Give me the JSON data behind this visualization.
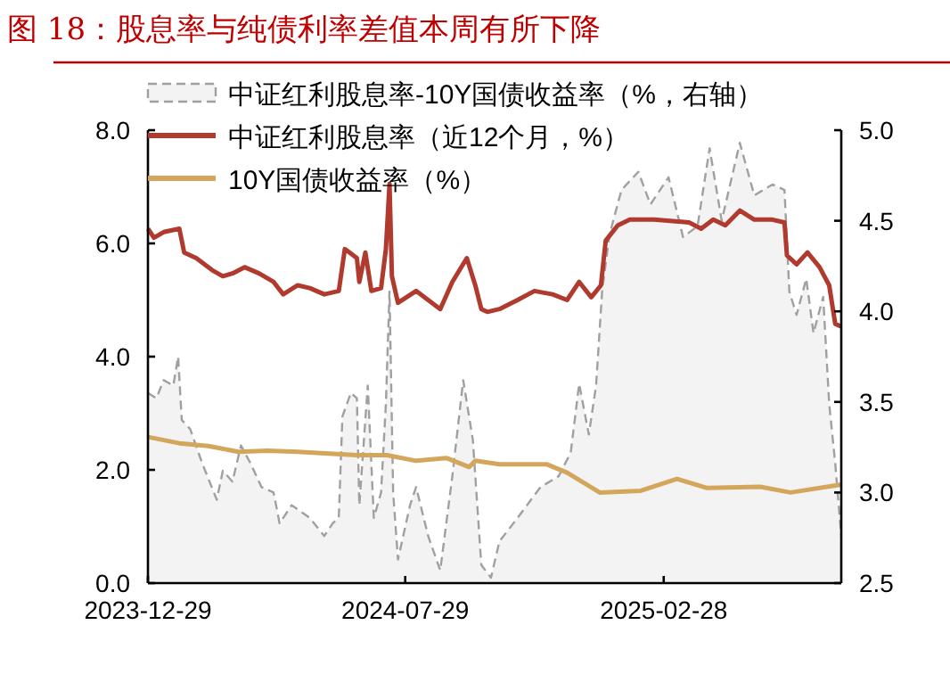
{
  "chart_data": {
    "type": "line",
    "title": "图 18：股息率与纯债利率差值本周有所下降",
    "legend": "top left",
    "xlim": [
      "2023-12-29",
      "2025-07-25"
    ],
    "xticks": [
      {
        "value": "2023-12-29",
        "label": "2023-12-29"
      },
      {
        "value": "2024-07-29",
        "label": "2024-07-29"
      },
      {
        "value": "2025-02-28",
        "label": "2025-02-28"
      }
    ],
    "ylim": [
      0,
      8
    ],
    "yticks": [
      {
        "value": 0,
        "label": "0.0"
      },
      {
        "value": 2,
        "label": "2.0"
      },
      {
        "value": 4,
        "label": "4.0"
      },
      {
        "value": 6,
        "label": "6.0"
      },
      {
        "value": 8,
        "label": "8.0"
      }
    ],
    "y2lim": [
      2.5,
      5
    ],
    "y2ticks": [
      {
        "value": 2.5,
        "label": "2.5"
      },
      {
        "value": 3,
        "label": "3.0"
      },
      {
        "value": 3.5,
        "label": "3.5"
      },
      {
        "value": 4,
        "label": "4.0"
      },
      {
        "value": 4.5,
        "label": "4.5"
      },
      {
        "value": 5,
        "label": "5.0"
      }
    ],
    "series": [
      {
        "name": "中证红利股息率-10Y国债收益率（%，右轴）",
        "type": "area",
        "axis": "y2",
        "line_style": "dashed",
        "color": "#a0a0a0",
        "x": [
          "2023-12-29",
          "2024-01-05",
          "2024-01-11",
          "2024-01-19",
          "2024-01-23",
          "2024-01-26",
          "2024-02-02",
          "2024-02-12",
          "2024-02-24",
          "2024-02-29",
          "2024-03-08",
          "2024-03-15",
          "2024-03-23",
          "2024-04-01",
          "2024-04-11",
          "2024-04-16",
          "2024-04-26",
          "2024-05-11",
          "2024-05-23",
          "2024-05-30",
          "2024-06-04",
          "2024-06-07",
          "2024-06-14",
          "2024-06-19",
          "2024-06-21",
          "2024-06-28",
          "2024-07-03",
          "2024-07-09",
          "2024-07-13",
          "2024-07-16",
          "2024-07-19",
          "2024-07-23",
          "2024-08-02",
          "2024-08-07",
          "2024-08-17",
          "2024-08-27",
          "2024-09-06",
          "2024-09-15",
          "2024-09-23",
          "2024-09-30",
          "2024-10-08",
          "2024-10-15",
          "2024-10-30",
          "2024-11-18",
          "2024-12-03",
          "2024-12-13",
          "2024-12-20",
          "2024-12-28",
          "2025-01-03",
          "2025-01-08",
          "2025-01-14",
          "2025-01-24",
          "2025-02-07",
          "2025-02-17",
          "2025-03-04",
          "2025-03-16",
          "2025-03-28",
          "2025-04-07",
          "2025-04-17",
          "2025-05-02",
          "2025-05-14",
          "2025-05-29",
          "2025-06-08",
          "2025-06-12",
          "2025-06-18",
          "2025-06-26",
          "2025-07-02",
          "2025-07-10",
          "2025-07-15",
          "2025-07-20",
          "2025-07-25"
        ],
        "values": [
          3.55,
          3.52,
          3.62,
          3.59,
          3.75,
          3.4,
          3.35,
          3.16,
          2.96,
          3.12,
          3.06,
          3.26,
          3.16,
          3.03,
          3.0,
          2.83,
          2.93,
          2.86,
          2.76,
          2.83,
          2.86,
          3.42,
          3.55,
          3.52,
          2.93,
          3.59,
          2.86,
          3.0,
          3.49,
          4.11,
          3.0,
          2.63,
          2.93,
          3.03,
          2.76,
          2.57,
          3.09,
          3.62,
          3.29,
          2.6,
          2.53,
          2.73,
          2.86,
          3.03,
          3.09,
          3.22,
          3.6,
          3.32,
          3.59,
          4.11,
          4.42,
          4.67,
          4.77,
          4.59,
          4.74,
          4.41,
          4.47,
          4.9,
          4.5,
          4.93,
          4.64,
          4.7,
          4.67,
          4.11,
          3.98,
          4.18,
          3.88,
          4.08,
          3.49,
          3.16,
          2.76
        ]
      },
      {
        "name": "中证红利股息率（近12个月，%）",
        "line_style": "solid",
        "color": "#b03a2e",
        "x": [
          "2023-12-29",
          "2024-01-03",
          "2024-01-11",
          "2024-01-24",
          "2024-01-28",
          "2024-02-07",
          "2024-02-20",
          "2024-02-29",
          "2024-03-08",
          "2024-03-18",
          "2024-03-30",
          "2024-04-11",
          "2024-04-19",
          "2024-05-01",
          "2024-05-11",
          "2024-05-23",
          "2024-06-04",
          "2024-06-09",
          "2024-06-19",
          "2024-06-21",
          "2024-06-26",
          "2024-07-01",
          "2024-07-09",
          "2024-07-13",
          "2024-07-16",
          "2024-07-18",
          "2024-07-23",
          "2024-08-07",
          "2024-08-17",
          "2024-08-27",
          "2024-09-06",
          "2024-09-18",
          "2024-09-25",
          "2024-09-30",
          "2024-10-05",
          "2024-10-15",
          "2024-10-30",
          "2024-11-13",
          "2024-11-28",
          "2024-12-10",
          "2024-12-20",
          "2024-12-30",
          "2025-01-07",
          "2025-01-11",
          "2025-01-21",
          "2025-01-31",
          "2025-02-20",
          "2025-03-21",
          "2025-03-31",
          "2025-04-10",
          "2025-04-20",
          "2025-05-02",
          "2025-05-14",
          "2025-05-29",
          "2025-06-08",
          "2025-06-10",
          "2025-06-18",
          "2025-06-27",
          "2025-07-07",
          "2025-07-15",
          "2025-07-20",
          "2025-07-25"
        ],
        "values": [
          6.26,
          6.1,
          6.2,
          6.26,
          5.84,
          5.74,
          5.53,
          5.42,
          5.47,
          5.58,
          5.47,
          5.32,
          5.1,
          5.26,
          5.21,
          5.1,
          5.16,
          5.9,
          5.74,
          5.32,
          5.84,
          5.16,
          5.21,
          5.9,
          7.05,
          5.42,
          4.95,
          5.16,
          5.0,
          4.84,
          5.32,
          5.74,
          5.26,
          4.84,
          4.79,
          4.84,
          5.0,
          5.16,
          5.1,
          5.0,
          5.32,
          5.05,
          5.26,
          6.05,
          6.32,
          6.42,
          6.42,
          6.37,
          6.26,
          6.42,
          6.32,
          6.58,
          6.42,
          6.42,
          6.37,
          5.79,
          5.63,
          5.84,
          5.58,
          5.26,
          4.58,
          4.53
        ]
      },
      {
        "name": "10Y国债收益率（%）",
        "line_style": "solid",
        "color": "#d4a65c",
        "x": [
          "2023-12-29",
          "2024-01-24",
          "2024-02-17",
          "2024-03-13",
          "2024-04-06",
          "2024-05-01",
          "2024-06-19",
          "2024-07-14",
          "2024-08-07",
          "2024-09-01",
          "2024-09-20",
          "2024-09-25",
          "2024-10-15",
          "2024-11-23",
          "2024-12-10",
          "2025-01-06",
          "2025-02-09",
          "2025-03-11",
          "2025-04-05",
          "2025-05-19",
          "2025-06-13",
          "2025-07-25"
        ],
        "values": [
          2.58,
          2.47,
          2.42,
          2.32,
          2.34,
          2.32,
          2.26,
          2.26,
          2.16,
          2.21,
          2.05,
          2.16,
          2.1,
          2.1,
          1.95,
          1.6,
          1.63,
          1.84,
          1.68,
          1.7,
          1.6,
          1.74
        ]
      }
    ]
  }
}
